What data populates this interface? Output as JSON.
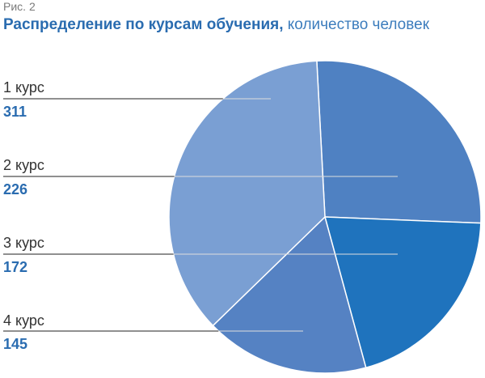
{
  "figure_label": "Рис. 2",
  "chart_data": {
    "type": "pie",
    "title": "Распределение по курсам обучения,",
    "subtitle": "количество человек",
    "categories": [
      "1 курс",
      "2 курс",
      "3 курс",
      "4 курс"
    ],
    "values": [
      311,
      226,
      172,
      145
    ],
    "value_labels": [
      "311",
      "226",
      "172",
      "145"
    ],
    "colors": [
      "#7a9fd3",
      "#4f81c2",
      "#1f73bd",
      "#5582c3"
    ],
    "legend": "left"
  }
}
